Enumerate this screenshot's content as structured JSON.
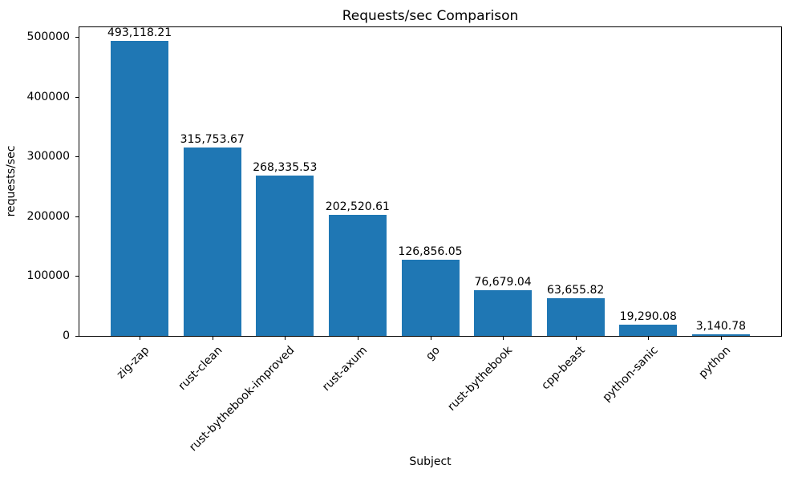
{
  "chart_data": {
    "type": "bar",
    "title": "Requests/sec Comparison",
    "xlabel": "Subject",
    "ylabel": "requests/sec",
    "categories": [
      "zig-zap",
      "rust-clean",
      "rust-bythebook-improved",
      "rust-axum",
      "go",
      "rust-bythebook",
      "cpp-beast",
      "python-sanic",
      "python"
    ],
    "values": [
      493118.21,
      315753.67,
      268335.53,
      202520.61,
      126856.05,
      76679.04,
      63655.82,
      19290.08,
      3140.78
    ],
    "value_labels": [
      "493,118.21",
      "315,753.67",
      "268,335.53",
      "202,520.61",
      "126,856.05",
      "76,679.04",
      "63,655.82",
      "19,290.08",
      "3,140.78"
    ],
    "ytick_values": [
      0,
      100000,
      200000,
      300000,
      400000,
      500000
    ],
    "ytick_labels": [
      "0",
      "100000",
      "200000",
      "300000",
      "400000",
      "500000"
    ],
    "ylim": [
      0,
      517774
    ],
    "bar_color": "#1f77b4",
    "grid": false,
    "legend_position": "none",
    "background_color": "#ffffff"
  }
}
